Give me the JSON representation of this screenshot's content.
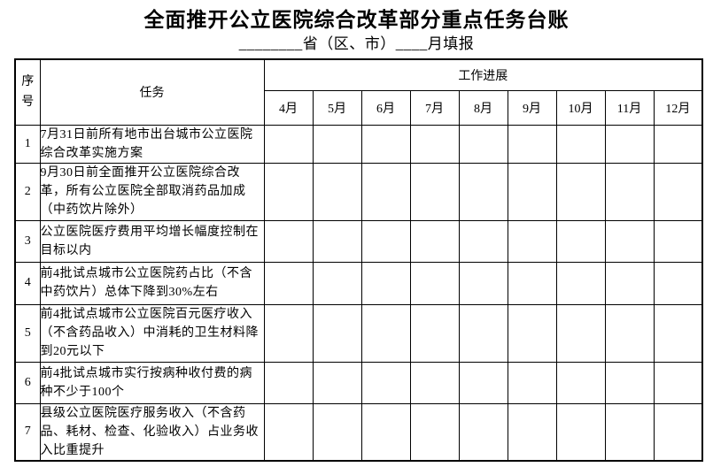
{
  "page": {
    "title": "全面推开公立医院综合改革部分重点任务台账",
    "subtitle": "________省（区、市）____月填报"
  },
  "table": {
    "header": {
      "serial": "序号",
      "task": "任务",
      "progress": "工作进展",
      "months": [
        "4月",
        "5月",
        "6月",
        "7月",
        "8月",
        "9月",
        "10月",
        "11月",
        "12月"
      ]
    },
    "rows": [
      {
        "no": "1",
        "task": "7月31日前所有地市出台城市公立医院综合改革实施方案"
      },
      {
        "no": "2",
        "task": "9月30日前全面推开公立医院综合改革，所有公立医院全部取消药品加成（中药饮片除外）"
      },
      {
        "no": "3",
        "task": "公立医院医疗费用平均增长幅度控制在目标以内"
      },
      {
        "no": "4",
        "task": "前4批试点城市公立医院药占比（不含中药饮片）总体下降到30%左右"
      },
      {
        "no": "5",
        "task": "前4批试点城市公立医院百元医疗收入（不含药品收入）中消耗的卫生材料降到20元以下"
      },
      {
        "no": "6",
        "task": "前4批试点城市实行按病种收付费的病种不少于100个"
      },
      {
        "no": "7",
        "task": "县级公立医院医疗服务收入（不含药品、耗材、检查、化验收入）占业务收入比重提升"
      }
    ]
  }
}
